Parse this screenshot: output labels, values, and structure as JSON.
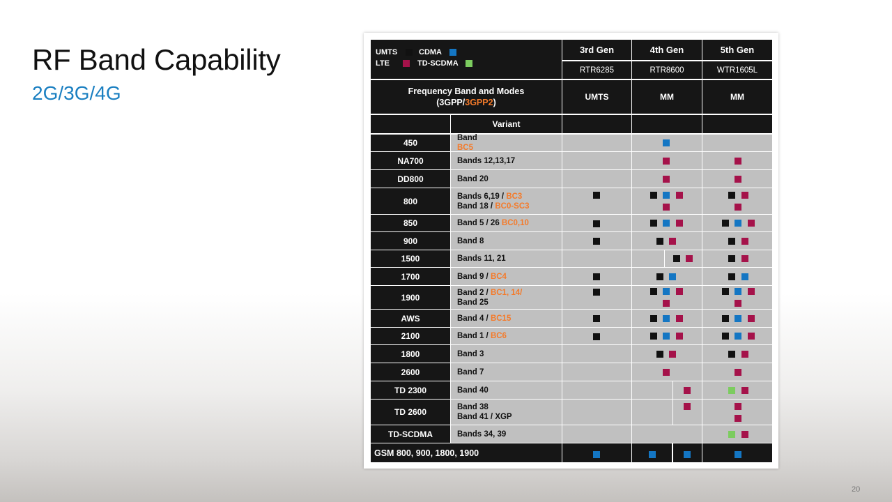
{
  "slide": {
    "title": "RF Band Capability",
    "subtitle": "2G/3G/4G",
    "page_number": "20"
  },
  "legend": {
    "umts": "UMTS",
    "cdma": "CDMA",
    "lte": "LTE",
    "td_scdma": "TD-SCDMA"
  },
  "colors": {
    "umts": "#111111",
    "cdma": "#1476c3",
    "lte": "#a5124a",
    "td_scdma": "#7ccc5f",
    "accent_orange": "#f47a2a",
    "subtitle_blue": "#1a7fc1"
  },
  "header": {
    "generations": [
      "3rd Gen",
      "4th Gen",
      "5th Gen"
    ],
    "parts": [
      "RTR6285",
      "RTR8600",
      "WTR1605L"
    ],
    "freq_label": "Frequency Band and Modes",
    "freq_sub_open": "(3GPP/",
    "freq_sub_orange": "3GPP2",
    "freq_sub_close": ")",
    "modes": [
      "UMTS",
      "MM",
      "MM"
    ],
    "variant_label": "Variant"
  },
  "rows": [
    {
      "band": "450",
      "variant": [
        [
          "Band ",
          ""
        ],
        [
          "",
          "BC5"
        ]
      ]
    },
    {
      "band": "NA700",
      "variant": [
        [
          "Bands 12,13,17",
          ""
        ]
      ]
    },
    {
      "band": "DD800",
      "variant": [
        [
          "Band 20",
          ""
        ]
      ]
    },
    {
      "band": "800",
      "variant": [
        [
          "Bands 6,19 / ",
          "BC3"
        ],
        [
          "Band 18 / ",
          "BC0-SC3"
        ]
      ]
    },
    {
      "band": "850",
      "variant": [
        [
          "Band 5 / 26 ",
          "BC0,10"
        ]
      ]
    },
    {
      "band": "900",
      "variant": [
        [
          "Band 8",
          ""
        ]
      ]
    },
    {
      "band": "1500",
      "variant": [
        [
          "Bands 11, 21",
          ""
        ]
      ]
    },
    {
      "band": "1700",
      "variant": [
        [
          "Band 9 / ",
          "BC4"
        ]
      ]
    },
    {
      "band": "1900",
      "variant": [
        [
          "Band 2 / ",
          "BC1, 14/"
        ],
        [
          "Band 25",
          ""
        ]
      ]
    },
    {
      "band": "AWS",
      "variant": [
        [
          "Band 4 / ",
          "BC15"
        ]
      ]
    },
    {
      "band": "2100",
      "variant": [
        [
          "Band 1 / ",
          "BC6"
        ]
      ]
    },
    {
      "band": "1800",
      "variant": [
        [
          "Band 3",
          ""
        ]
      ]
    },
    {
      "band": "2600",
      "variant": [
        [
          "Band 7",
          ""
        ]
      ]
    },
    {
      "band": "TD 2300",
      "variant": [
        [
          "Band 40",
          ""
        ]
      ]
    },
    {
      "band": "TD 2600",
      "variant": [
        [
          "Band 38",
          ""
        ],
        [
          "Band 41 / XGP",
          ""
        ]
      ]
    },
    {
      "band": "TD-SCDMA",
      "variant": [
        [
          "Bands 34, 39",
          ""
        ]
      ]
    }
  ],
  "footer": {
    "gsm_label": "GSM 800, 900, 1800, 1900"
  }
}
